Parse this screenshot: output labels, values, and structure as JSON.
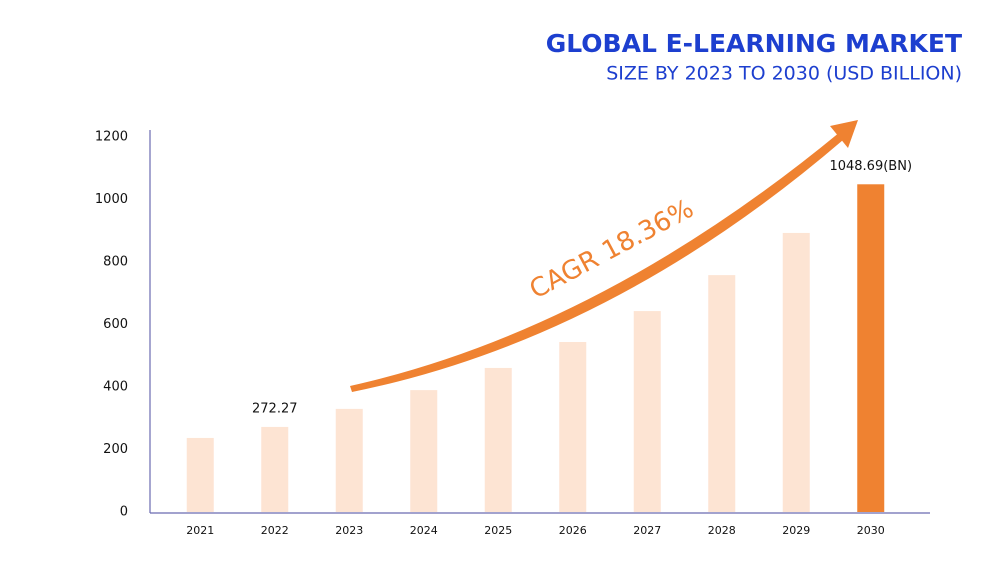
{
  "chart_data": {
    "type": "bar",
    "title": "GLOBAL E-LEARNING MARKET",
    "subtitle": "SIZE BY 2023 TO 2030 (USD BILLION)",
    "annotation": "CAGR 18.36%",
    "categories": [
      "2021",
      "2022",
      "2023",
      "2024",
      "2025",
      "2026",
      "2027",
      "2028",
      "2029",
      "2030"
    ],
    "values": [
      237,
      272.27,
      330,
      390,
      461,
      544,
      643,
      758,
      893,
      1048.69
    ],
    "value_labels": [
      null,
      "272.27",
      null,
      null,
      null,
      null,
      null,
      null,
      null,
      "1048.69(BN)"
    ],
    "colors": [
      "#fde4d3",
      "#fde4d3",
      "#fde4d3",
      "#fde4d3",
      "#fde4d3",
      "#fde4d3",
      "#fde4d3",
      "#fde4d3",
      "#fde4d3",
      "#ef8231"
    ],
    "ylim": [
      0,
      1200
    ],
    "yticks": [
      0,
      200,
      400,
      600,
      800,
      1000,
      1200
    ],
    "grid": false
  }
}
